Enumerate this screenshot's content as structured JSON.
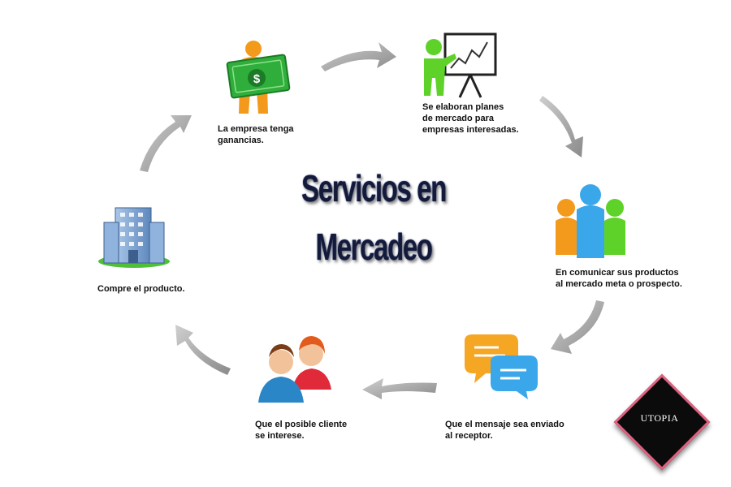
{
  "title": {
    "line1": "Servicios en",
    "line2": "Mercadeo"
  },
  "badge": "UTOPIA",
  "steps": [
    {
      "icon": "money-person-icon",
      "lines": [
        "La empresa tenga",
        "ganancias."
      ]
    },
    {
      "icon": "presentation-chart-icon",
      "lines": [
        "Se elaboran planes",
        "de mercado para",
        "empresas interesadas."
      ]
    },
    {
      "icon": "people-group-icon",
      "lines": [
        "En comunicar sus productos",
        "al mercado meta o prospecto."
      ]
    },
    {
      "icon": "chat-bubbles-icon",
      "lines": [
        "Que el mensaje sea enviado",
        "al receptor."
      ]
    },
    {
      "icon": "customers-icon",
      "lines": [
        "Que el posible cliente",
        "se interese."
      ]
    },
    {
      "icon": "office-building-icon",
      "lines": [
        "Compre el producto."
      ]
    }
  ],
  "colors": {
    "arrow": "#9a9a9a",
    "title": "#141a3a",
    "badge_border": "#e06080"
  }
}
